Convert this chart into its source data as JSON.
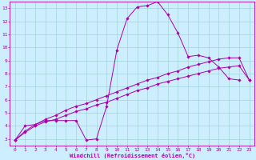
{
  "xlabel": "Windchill (Refroidissement éolien,°C)",
  "bg_color": "#cceeff",
  "line_color": "#aa00aa",
  "grid_color": "#99cccc",
  "xlim": [
    -0.5,
    23.5
  ],
  "ylim": [
    2.5,
    13.5
  ],
  "xticks": [
    0,
    1,
    2,
    3,
    4,
    5,
    6,
    7,
    8,
    9,
    10,
    11,
    12,
    13,
    14,
    15,
    16,
    17,
    18,
    19,
    20,
    21,
    22,
    23
  ],
  "yticks": [
    3,
    4,
    5,
    6,
    7,
    8,
    9,
    10,
    11,
    12,
    13
  ],
  "series1_x": [
    0,
    1,
    2,
    3,
    4,
    5,
    6,
    7,
    8,
    9,
    10,
    11,
    12,
    13,
    14,
    15,
    16,
    17,
    18,
    19,
    20,
    21,
    22
  ],
  "series1_y": [
    2.9,
    4.0,
    4.1,
    4.4,
    4.4,
    4.4,
    4.4,
    2.9,
    3.0,
    5.5,
    9.8,
    12.2,
    13.1,
    13.2,
    13.5,
    12.5,
    11.1,
    9.3,
    9.4,
    9.2,
    8.5,
    7.6,
    7.5
  ],
  "series2_x": [
    0,
    1,
    2,
    3,
    4,
    5,
    6,
    7,
    8,
    9,
    10,
    11,
    12,
    13,
    14,
    15,
    16,
    17,
    18,
    19,
    20,
    21,
    22,
    23
  ],
  "series2_y": [
    2.9,
    3.5,
    4.0,
    4.3,
    4.5,
    4.8,
    5.1,
    5.3,
    5.6,
    5.8,
    6.1,
    6.4,
    6.7,
    6.9,
    7.2,
    7.4,
    7.6,
    7.8,
    8.0,
    8.2,
    8.4,
    8.5,
    8.6,
    7.5
  ],
  "series3_x": [
    0,
    1,
    2,
    3,
    4,
    5,
    6,
    7,
    8,
    9,
    10,
    11,
    12,
    13,
    14,
    15,
    16,
    17,
    18,
    19,
    20,
    21,
    22,
    23
  ],
  "series3_y": [
    2.9,
    3.6,
    4.1,
    4.5,
    4.8,
    5.2,
    5.5,
    5.7,
    6.0,
    6.3,
    6.6,
    6.9,
    7.2,
    7.5,
    7.7,
    8.0,
    8.2,
    8.5,
    8.7,
    8.9,
    9.1,
    9.2,
    9.2,
    7.5
  ],
  "marker": "D",
  "markersize": 1.8,
  "linewidth": 0.7,
  "tick_fontsize": 4.5,
  "xlabel_fontsize": 5.0
}
